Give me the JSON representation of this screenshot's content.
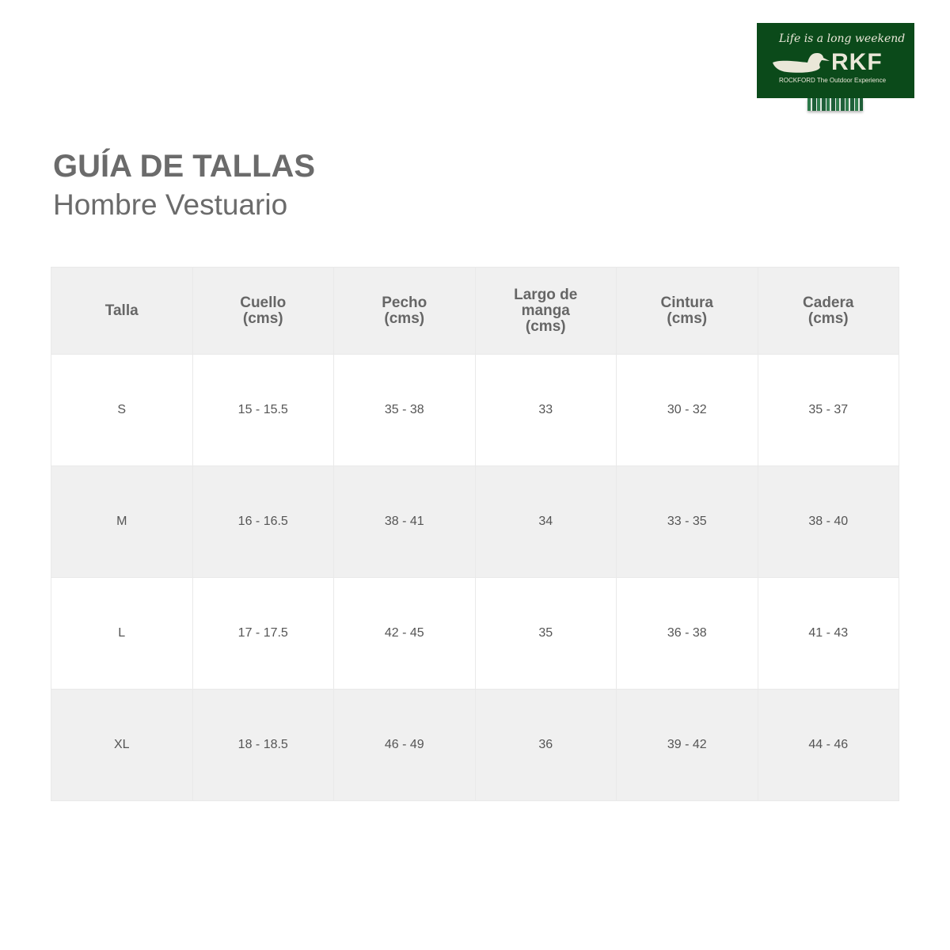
{
  "logo": {
    "tagline": "Life is a long weekend",
    "brand": "RKF",
    "subline": "ROCKFORD The Outdoor Experience",
    "color": "#0b4a1a"
  },
  "title": "GUÍA DE TALLAS",
  "subtitle": "Hombre Vestuario",
  "table": {
    "headers": [
      "Talla",
      "Cuello\n(cms)",
      "Pecho\n(cms)",
      "Largo de\nmanga\n(cms)",
      "Cintura\n(cms)",
      "Cadera\n(cms)"
    ],
    "rows": [
      [
        "S",
        "15 - 15.5",
        "35 - 38",
        "33",
        "30 - 32",
        "35 - 37"
      ],
      [
        "M",
        "16 - 16.5",
        "38 - 41",
        "34",
        "33 - 35",
        "38 - 40"
      ],
      [
        "L",
        "17 - 17.5",
        "42 - 45",
        "35",
        "36 - 38",
        "41 - 43"
      ],
      [
        "XL",
        "18 - 18.5",
        "46 - 49",
        "36",
        "39 - 42",
        "44 - 46"
      ]
    ]
  }
}
